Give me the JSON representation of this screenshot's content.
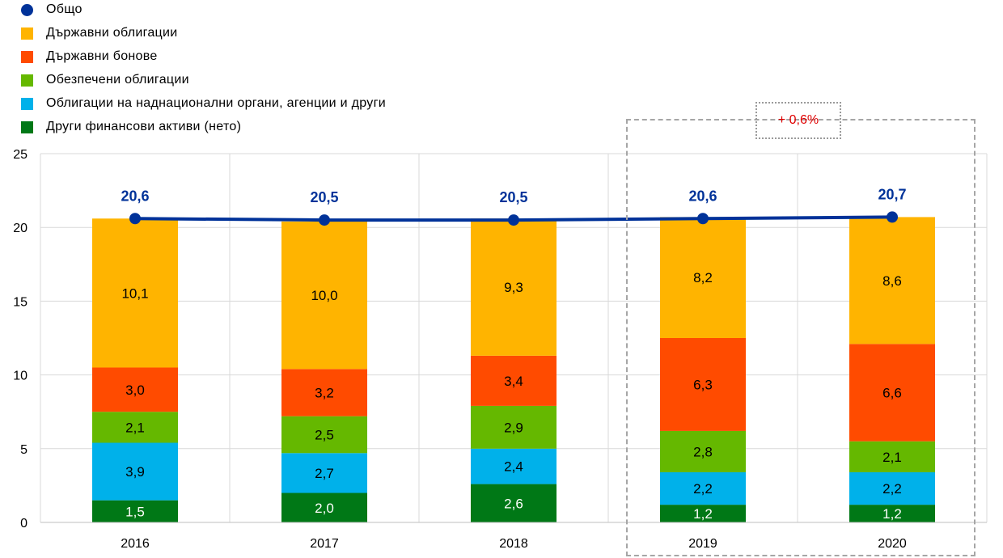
{
  "chart_data": {
    "type": "bar",
    "stacked": true,
    "categories": [
      "2016",
      "2017",
      "2018",
      "2019",
      "2020"
    ],
    "ylim": [
      0,
      25
    ],
    "yticks": [
      "0",
      "5",
      "10",
      "15",
      "20",
      "25"
    ],
    "grid": true,
    "legend_position": "top-left",
    "series": [
      {
        "name": "Други финансови активи (нето)",
        "color": "#007816",
        "values": [
          1.5,
          2.0,
          2.6,
          1.2,
          1.2
        ],
        "labels": [
          "1,5",
          "2,0",
          "2,6",
          "1,2",
          "1,2"
        ],
        "label_color": "#ffffff"
      },
      {
        "name": "Облигации на наднационални органи, агенции и други",
        "color": "#00b1ea",
        "values": [
          3.9,
          2.7,
          2.4,
          2.2,
          2.2
        ],
        "labels": [
          "3,9",
          "2,7",
          "2,4",
          "2,2",
          "2,2"
        ],
        "label_color": "#000000"
      },
      {
        "name": "Обезпечени облигации",
        "color": "#65b800",
        "values": [
          2.1,
          2.5,
          2.9,
          2.8,
          2.1
        ],
        "labels": [
          "2,1",
          "2,5",
          "2,9",
          "2,8",
          "2,1"
        ],
        "label_color": "#000000"
      },
      {
        "name": "Държавни бонове",
        "color": "#ff4b00",
        "values": [
          3.0,
          3.2,
          3.4,
          6.3,
          6.6
        ],
        "labels": [
          "3,0",
          "3,2",
          "3,4",
          "6,3",
          "6,6"
        ],
        "label_color": "#000000"
      },
      {
        "name": "Държавни облигации",
        "color": "#ffb400",
        "values": [
          10.1,
          10.0,
          9.3,
          8.2,
          8.6
        ],
        "labels": [
          "10,1",
          "10,0",
          "9,3",
          "8,2",
          "8,6"
        ],
        "label_color": "#000000"
      }
    ],
    "total": {
      "name": "Общо",
      "color": "#003299",
      "values": [
        20.6,
        20.5,
        20.5,
        20.6,
        20.7
      ],
      "labels": [
        "20,6",
        "20,5",
        "20,5",
        "20,6",
        "20,7"
      ]
    },
    "annotation": "+ 0,6%"
  },
  "legend": [
    {
      "label": "Общо",
      "color": "#003299",
      "kind": "marker"
    },
    {
      "label": "Държавни облигации",
      "color": "#ffb400",
      "kind": "swatch"
    },
    {
      "label": "Държавни бонове",
      "color": "#ff4b00",
      "kind": "swatch"
    },
    {
      "label": "Обезпечени облигации",
      "color": "#65b800",
      "kind": "swatch"
    },
    {
      "label": "Облигации на наднационални органи, агенции и други",
      "color": "#00b1ea",
      "kind": "swatch"
    },
    {
      "label": "Други финансови активи (нето)",
      "color": "#007816",
      "kind": "swatch"
    }
  ]
}
